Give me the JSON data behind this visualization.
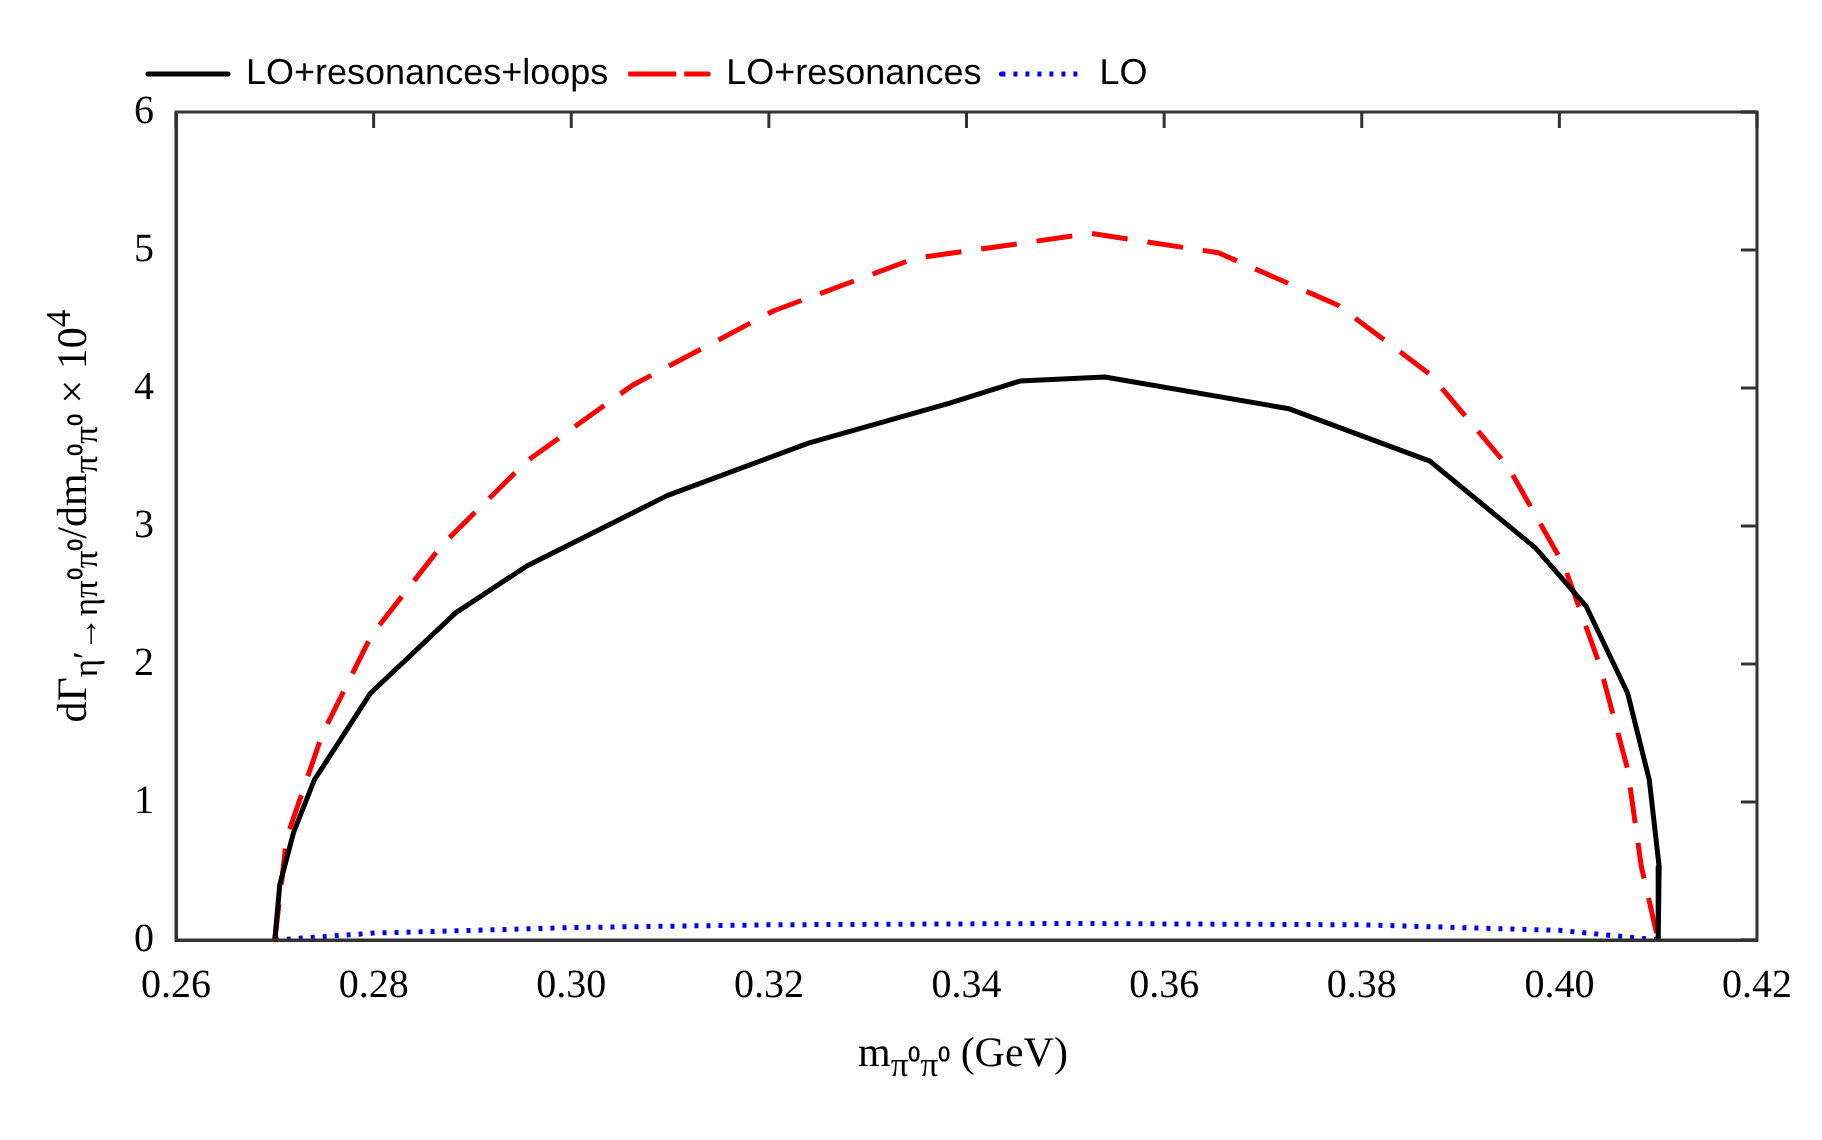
{
  "chart_data": {
    "type": "line",
    "xlabel": "m$_{π⁰π⁰}$ (GeV)",
    "ylabel": "dΓ$_{η′→ηπ⁰π⁰}$/dm$_{π⁰π⁰}$ × 10$^{4}$",
    "xlim": [
      0.26,
      0.42
    ],
    "ylim": [
      0,
      6
    ],
    "xticks": [
      0.26,
      0.28,
      {
        "value": 0.3,
        "label": "0.30"
      },
      0.32,
      0.34,
      0.36,
      0.38,
      {
        "value": 0.4,
        "label": "0.40"
      },
      0.42
    ],
    "yticks": [
      0,
      1,
      2,
      3,
      4,
      5,
      6
    ],
    "grid": false,
    "legend": "top left",
    "marker": "none",
    "series": [
      {
        "name": "LO+resonances+loops",
        "color": "#000000",
        "line_style": "solid",
        "x": [
          0.27,
          0.2705,
          0.2719,
          0.274,
          0.2797,
          0.2883,
          0.2955,
          0.3097,
          0.324,
          0.3383,
          0.3454,
          0.354,
          0.3726,
          0.3869,
          0.3976,
          0.4027,
          0.4069,
          0.4091,
          0.4101,
          0.41
        ],
        "values": [
          0,
          0.4,
          0.78,
          1.16,
          1.79,
          2.37,
          2.71,
          3.22,
          3.6,
          3.89,
          4.05,
          4.08,
          3.85,
          3.47,
          2.84,
          2.42,
          1.79,
          1.16,
          0.53,
          0
        ]
      },
      {
        "name": "LO+resonances",
        "color": "#ff0000",
        "line_style": "dashed",
        "x": [
          0.27,
          0.2712,
          0.2748,
          0.2798,
          0.2869,
          0.2955,
          0.3062,
          0.3205,
          0.3348,
          0.3526,
          0.3655,
          0.3776,
          0.3869,
          0.3948,
          0.4005,
          0.4041,
          0.4069,
          0.4083,
          0.41
        ],
        "values": [
          0,
          0.74,
          1.49,
          2.21,
          2.86,
          3.47,
          4.02,
          4.56,
          4.94,
          5.12,
          4.98,
          4.6,
          4.1,
          3.43,
          2.71,
          1.99,
          1.24,
          0.53,
          0
        ]
      },
      {
        "name": "LO",
        "color": "#0000ff",
        "line_style": "dotted",
        "x": [
          0.27,
          0.28,
          0.3,
          0.32,
          0.35,
          0.38,
          0.4,
          0.41
        ],
        "values": [
          0,
          0.05,
          0.09,
          0.11,
          0.12,
          0.11,
          0.07,
          0
        ]
      }
    ]
  }
}
